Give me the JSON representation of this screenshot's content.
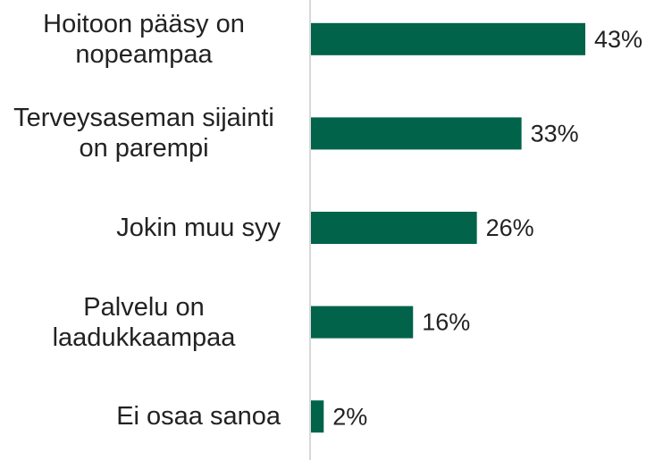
{
  "chart_data": {
    "type": "bar",
    "orientation": "horizontal",
    "categories": [
      "Hoitoon pääsy on nopeampaa",
      "Terveysaseman sijainti on parempi",
      "Jokin muu syy",
      "Palvelu on laadukkaampaa",
      "Ei osaa sanoa"
    ],
    "values": [
      43,
      33,
      26,
      16,
      2
    ],
    "value_labels": [
      "43%",
      "33%",
      "26%",
      "16%",
      "2%"
    ],
    "color": "#00634a",
    "xlim": [
      0,
      50
    ]
  }
}
